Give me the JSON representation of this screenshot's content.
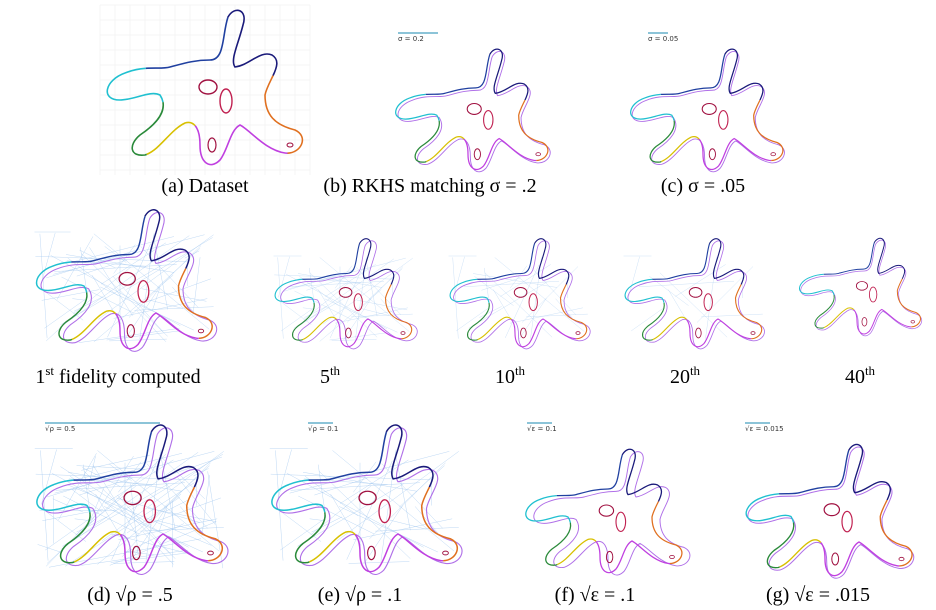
{
  "row1": [
    {
      "caption": "(a) Dataset"
    },
    {
      "caption": "(b) RKHS matching σ = .2",
      "label": "σ =   0.2"
    },
    {
      "caption": "(c) σ = .05",
      "label": "σ = 0.05"
    }
  ],
  "row2": [
    {
      "base": "1",
      "sup": "st",
      "rest": " fidelity computed"
    },
    {
      "base": "5",
      "sup": "th"
    },
    {
      "base": "10",
      "sup": "th"
    },
    {
      "base": "20",
      "sup": "th"
    },
    {
      "base": "40",
      "sup": "th"
    }
  ],
  "row3": [
    {
      "caption": "(d) √ρ = .5",
      "label": "√ρ =   0.5"
    },
    {
      "caption": "(e) √ρ = .1",
      "label": "√ρ = 0.1"
    },
    {
      "caption": "(f) √ε = .1",
      "label": "√ε =   0.1"
    },
    {
      "caption": "(g) √ε = .015",
      "label": "√ε = 0.015"
    }
  ]
}
